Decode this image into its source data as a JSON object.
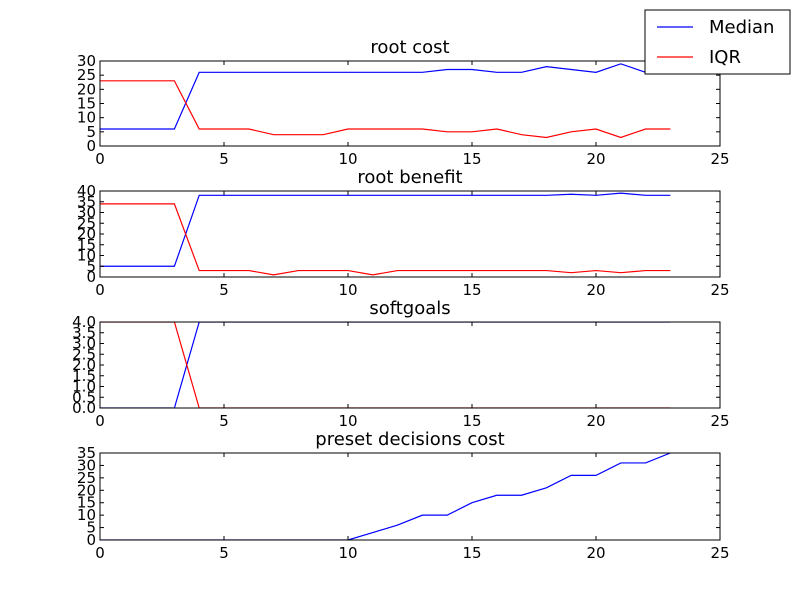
{
  "colors": {
    "median": "#0000ff",
    "iqr": "#ff0000"
  },
  "legend": {
    "placement": "top-right",
    "entries": [
      {
        "label": "Median",
        "color": "#0000ff"
      },
      {
        "label": "IQR",
        "color": "#ff0000"
      }
    ]
  },
  "chart_data": [
    {
      "type": "line",
      "title": "root cost",
      "xlim": [
        0,
        25
      ],
      "ylim": [
        0,
        30
      ],
      "xticks": [
        0,
        5,
        10,
        15,
        20,
        25
      ],
      "yticks": [
        0,
        5,
        10,
        15,
        20,
        25,
        30
      ],
      "ytick_labels": [
        "0",
        "5",
        "10",
        "15",
        "20",
        "25",
        "30"
      ],
      "grid": false,
      "x": [
        0,
        1,
        2,
        3,
        4,
        5,
        6,
        7,
        8,
        9,
        10,
        11,
        12,
        13,
        14,
        15,
        16,
        17,
        18,
        19,
        20,
        21,
        22,
        23
      ],
      "series": [
        {
          "name": "Median",
          "color": "#0000ff",
          "values": [
            6,
            6,
            6,
            6,
            26,
            26,
            26,
            26,
            26,
            26,
            26,
            26,
            26,
            26,
            27,
            27,
            26,
            26,
            28,
            27,
            26,
            29,
            26,
            26
          ]
        },
        {
          "name": "IQR",
          "color": "#ff0000",
          "values": [
            23,
            23,
            23,
            23,
            6,
            6,
            6,
            4,
            4,
            4,
            6,
            6,
            6,
            6,
            5,
            5,
            6,
            4,
            3,
            5,
            6,
            3,
            6,
            6
          ]
        }
      ]
    },
    {
      "type": "line",
      "title": "root benefit",
      "xlim": [
        0,
        25
      ],
      "ylim": [
        0,
        40
      ],
      "xticks": [
        0,
        5,
        10,
        15,
        20,
        25
      ],
      "yticks": [
        0,
        5,
        10,
        15,
        20,
        25,
        30,
        35,
        40
      ],
      "ytick_labels": [
        "0",
        "5",
        "10",
        "15",
        "20",
        "25",
        "30",
        "35",
        "40"
      ],
      "grid": false,
      "x": [
        0,
        1,
        2,
        3,
        4,
        5,
        6,
        7,
        8,
        9,
        10,
        11,
        12,
        13,
        14,
        15,
        16,
        17,
        18,
        19,
        20,
        21,
        22,
        23
      ],
      "series": [
        {
          "name": "Median",
          "color": "#0000ff",
          "values": [
            5,
            5,
            5,
            5,
            38,
            38,
            38,
            38,
            38,
            38,
            38,
            38,
            38,
            38,
            38,
            38,
            38,
            38,
            38,
            38.5,
            38,
            39,
            38,
            38
          ]
        },
        {
          "name": "IQR",
          "color": "#ff0000",
          "values": [
            34,
            34,
            34,
            34,
            3,
            3,
            3,
            1,
            3,
            3,
            3,
            1,
            3,
            3,
            3,
            3,
            3,
            3,
            3,
            2,
            3,
            2,
            3,
            3
          ]
        }
      ]
    },
    {
      "type": "line",
      "title": "softgoals",
      "xlim": [
        0,
        25
      ],
      "ylim": [
        0,
        4.0
      ],
      "xticks": [
        0,
        5,
        10,
        15,
        20,
        25
      ],
      "yticks": [
        0,
        0.5,
        1.0,
        1.5,
        2.0,
        2.5,
        3.0,
        3.5,
        4.0
      ],
      "ytick_labels": [
        "0.0",
        "0.5",
        "1.0",
        "1.5",
        "2.0",
        "2.5",
        "3.0",
        "3.5",
        "4.0"
      ],
      "grid": false,
      "x": [
        0,
        1,
        2,
        3,
        4,
        5,
        6,
        7,
        8,
        9,
        10,
        11,
        12,
        13,
        14,
        15,
        16,
        17,
        18,
        19,
        20,
        21,
        22,
        23
      ],
      "series": [
        {
          "name": "Median",
          "color": "#0000ff",
          "values": [
            0,
            0,
            0,
            0,
            4,
            4,
            4,
            4,
            4,
            4,
            4,
            4,
            4,
            4,
            4,
            4,
            4,
            4,
            4,
            4,
            4,
            4,
            4,
            4
          ]
        },
        {
          "name": "IQR",
          "color": "#ff0000",
          "values": [
            4,
            4,
            4,
            4,
            0,
            0,
            0,
            0,
            0,
            0,
            0,
            0,
            0,
            0,
            0,
            0,
            0,
            0,
            0,
            0,
            0,
            0,
            0,
            0
          ]
        }
      ]
    },
    {
      "type": "line",
      "title": "preset decisions cost",
      "xlim": [
        0,
        25
      ],
      "ylim": [
        0,
        35
      ],
      "xticks": [
        0,
        5,
        10,
        15,
        20,
        25
      ],
      "yticks": [
        0,
        5,
        10,
        15,
        20,
        25,
        30,
        35
      ],
      "ytick_labels": [
        "0",
        "5",
        "10",
        "15",
        "20",
        "25",
        "30",
        "35"
      ],
      "grid": false,
      "x": [
        0,
        1,
        2,
        3,
        4,
        5,
        6,
        7,
        8,
        9,
        10,
        11,
        12,
        13,
        14,
        15,
        16,
        17,
        18,
        19,
        20,
        21,
        22,
        23
      ],
      "series": [
        {
          "name": "Median",
          "color": "#0000ff",
          "values": [
            0,
            0,
            0,
            0,
            0,
            0,
            0,
            0,
            0,
            0,
            0,
            3,
            6,
            10,
            10,
            15,
            18,
            18,
            21,
            26,
            26,
            31,
            31,
            35
          ]
        }
      ]
    }
  ]
}
